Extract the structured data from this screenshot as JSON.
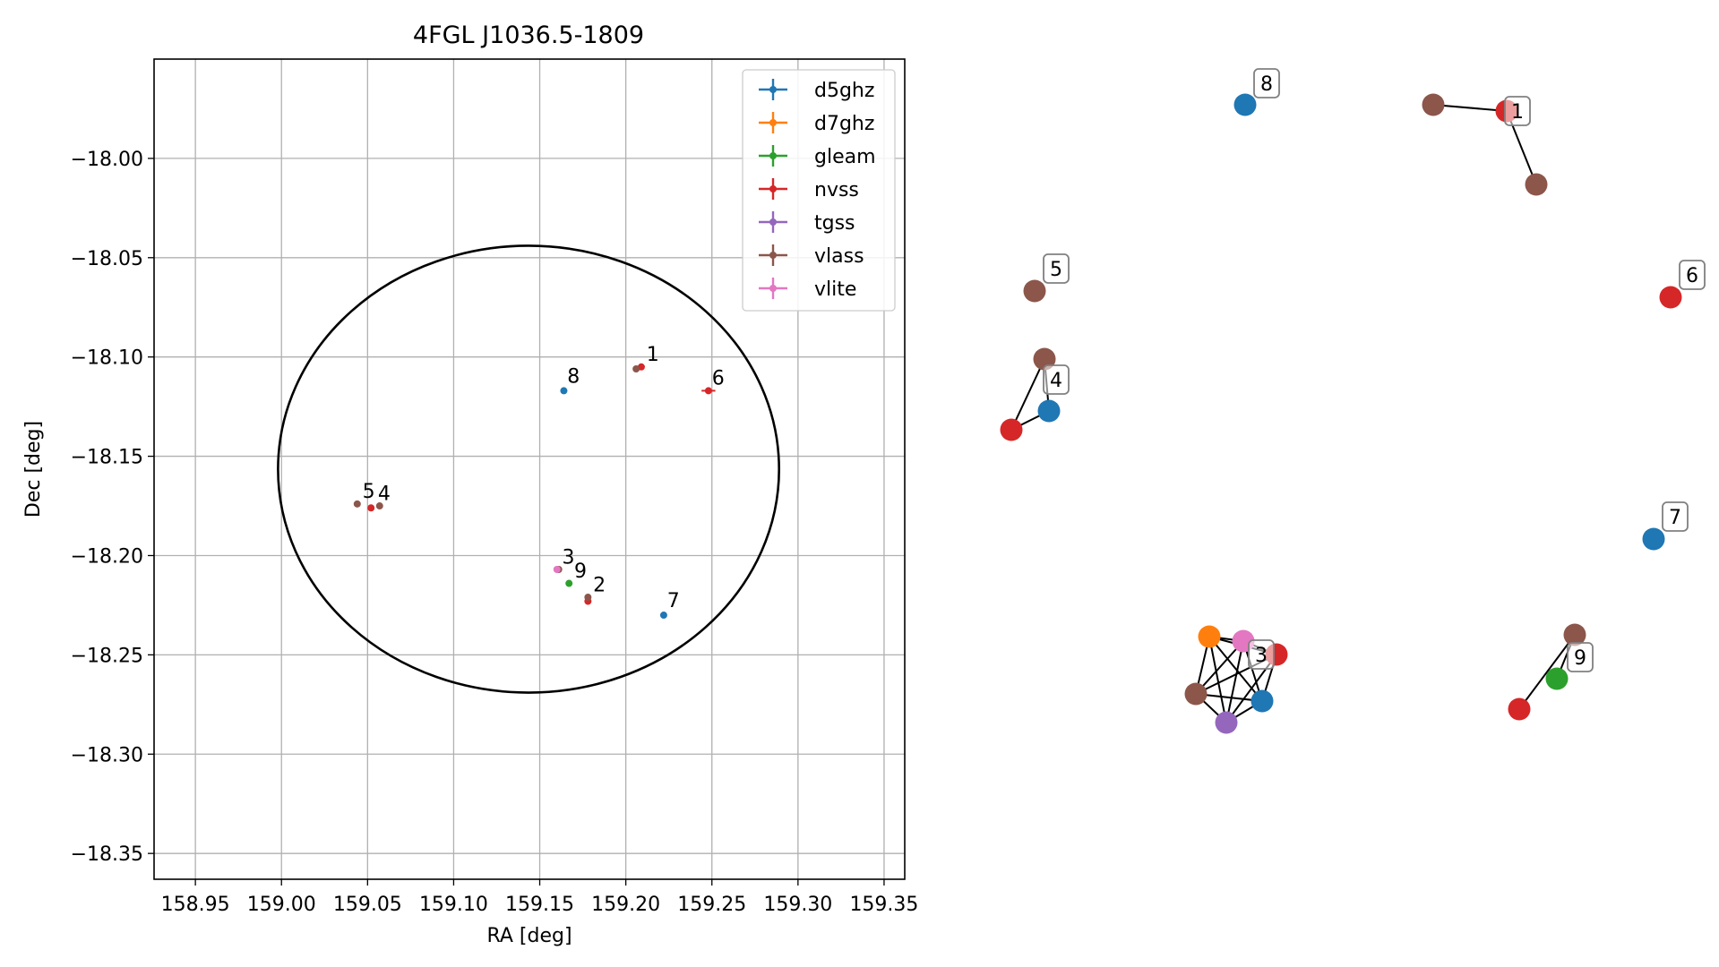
{
  "chart_data": [
    {
      "type": "scatter",
      "title": "4FGL J1036.5-1809",
      "xlabel": "RA [deg]",
      "ylabel": "Dec [deg]",
      "xlim": [
        158.926,
        159.362
      ],
      "ylim": [
        -18.363,
        -17.95
      ],
      "xticks": [
        158.95,
        159.0,
        159.05,
        159.1,
        159.15,
        159.2,
        159.25,
        159.3,
        159.35
      ],
      "xtick_labels": [
        "158.95",
        "159.00",
        "159.05",
        "159.10",
        "159.15",
        "159.20",
        "159.25",
        "159.30",
        "159.35"
      ],
      "yticks": [
        -18.0,
        -18.05,
        -18.1,
        -18.15,
        -18.2,
        -18.25,
        -18.3,
        -18.35
      ],
      "ytick_labels": [
        "−18.00",
        "−18.05",
        "−18.10",
        "−18.15",
        "−18.20",
        "−18.25",
        "−18.30",
        "−18.35"
      ],
      "grid": true,
      "legend_position": "top-right",
      "series": [
        {
          "name": "d5ghz",
          "color": "#1f77b4",
          "points": [
            {
              "x": 159.164,
              "y": -18.117,
              "xerr": 0.0005,
              "yerr": 0.0005
            },
            {
              "x": 159.222,
              "y": -18.23,
              "xerr": 0.0005,
              "yerr": 0.0005
            }
          ]
        },
        {
          "name": "d7ghz",
          "color": "#ff7f0e",
          "points": []
        },
        {
          "name": "gleam",
          "color": "#2ca02c",
          "points": [
            {
              "x": 159.167,
              "y": -18.214,
              "xerr": 0.001,
              "yerr": 0.001
            }
          ]
        },
        {
          "name": "nvss",
          "color": "#d62728",
          "points": [
            {
              "x": 159.209,
              "y": -18.105,
              "xerr": 0.001,
              "yerr": 0.001
            },
            {
              "x": 159.248,
              "y": -18.117,
              "xerr": 0.004,
              "yerr": 0.001
            },
            {
              "x": 159.052,
              "y": -18.176,
              "xerr": 0.001,
              "yerr": 0.001
            },
            {
              "x": 159.178,
              "y": -18.223,
              "xerr": 0.001,
              "yerr": 0.001
            }
          ]
        },
        {
          "name": "tgss",
          "color": "#9467bd",
          "points": []
        },
        {
          "name": "vlass",
          "color": "#8c564b",
          "points": [
            {
              "x": 159.206,
              "y": -18.106,
              "xerr": 0.0005,
              "yerr": 0.0005
            },
            {
              "x": 159.044,
              "y": -18.174,
              "xerr": 0.0005,
              "yerr": 0.0005
            },
            {
              "x": 159.057,
              "y": -18.175,
              "xerr": 0.0005,
              "yerr": 0.0005
            },
            {
              "x": 159.178,
              "y": -18.221,
              "xerr": 0.0005,
              "yerr": 0.0005
            },
            {
              "x": 159.161,
              "y": -18.207,
              "xerr": 0.0005,
              "yerr": 0.0005
            }
          ]
        },
        {
          "name": "vlite",
          "color": "#e377c2",
          "points": [
            {
              "x": 159.16,
              "y": -18.207,
              "xerr": 0.001,
              "yerr": 0.001
            }
          ]
        }
      ],
      "point_labels": [
        {
          "text": "1",
          "x": 159.212,
          "y": -18.102
        },
        {
          "text": "8",
          "x": 159.166,
          "y": -18.113
        },
        {
          "text": "6",
          "x": 159.25,
          "y": -18.114
        },
        {
          "text": "5",
          "x": 159.047,
          "y": -18.171
        },
        {
          "text": "4",
          "x": 159.056,
          "y": -18.172
        },
        {
          "text": "3",
          "x": 159.163,
          "y": -18.204
        },
        {
          "text": "9",
          "x": 159.17,
          "y": -18.211
        },
        {
          "text": "2",
          "x": 159.181,
          "y": -18.218
        },
        {
          "text": "7",
          "x": 159.224,
          "y": -18.226
        }
      ],
      "circle": {
        "center_x": 159.1435,
        "center_y": -18.1565,
        "radius_x": 0.1455,
        "radius_y": 0.1125
      }
    },
    {
      "type": "network",
      "nodes": [
        {
          "id": "n8",
          "color": "#1f77b4",
          "label": "8"
        },
        {
          "id": "n1a",
          "color": "#8c564b"
        },
        {
          "id": "n1b",
          "color": "#d62728",
          "label": "1"
        },
        {
          "id": "n1c",
          "color": "#8c564b"
        },
        {
          "id": "n5",
          "color": "#8c564b",
          "label": "5"
        },
        {
          "id": "n6",
          "color": "#d62728",
          "label": "6"
        },
        {
          "id": "n4a",
          "color": "#8c564b"
        },
        {
          "id": "n4b",
          "color": "#1f77b4",
          "label": "4"
        },
        {
          "id": "n4c",
          "color": "#d62728"
        },
        {
          "id": "n7",
          "color": "#1f77b4",
          "label": "7"
        },
        {
          "id": "n3o",
          "color": "#ff7f0e"
        },
        {
          "id": "n3p",
          "color": "#e377c2"
        },
        {
          "id": "n3r",
          "color": "#d62728",
          "label": "3"
        },
        {
          "id": "n3b",
          "color": "#8c564b"
        },
        {
          "id": "n3l",
          "color": "#1f77b4"
        },
        {
          "id": "n3v",
          "color": "#9467bd"
        },
        {
          "id": "n9a",
          "color": "#8c564b"
        },
        {
          "id": "n9b",
          "color": "#2ca02c",
          "label": "9"
        },
        {
          "id": "n9c",
          "color": "#d62728"
        }
      ],
      "edges": [
        [
          "n1a",
          "n1b"
        ],
        [
          "n1b",
          "n1c"
        ],
        [
          "n4a",
          "n4b"
        ],
        [
          "n4a",
          "n4c"
        ],
        [
          "n4b",
          "n4c"
        ],
        [
          "n3o",
          "n3p"
        ],
        [
          "n3o",
          "n3r"
        ],
        [
          "n3o",
          "n3b"
        ],
        [
          "n3o",
          "n3l"
        ],
        [
          "n3o",
          "n3v"
        ],
        [
          "n3p",
          "n3r"
        ],
        [
          "n3p",
          "n3b"
        ],
        [
          "n3p",
          "n3l"
        ],
        [
          "n3p",
          "n3v"
        ],
        [
          "n3r",
          "n3b"
        ],
        [
          "n3r",
          "n3l"
        ],
        [
          "n3r",
          "n3v"
        ],
        [
          "n3b",
          "n3l"
        ],
        [
          "n3b",
          "n3v"
        ],
        [
          "n3l",
          "n3v"
        ],
        [
          "n9a",
          "n9b"
        ],
        [
          "n9a",
          "n9c"
        ]
      ]
    }
  ]
}
